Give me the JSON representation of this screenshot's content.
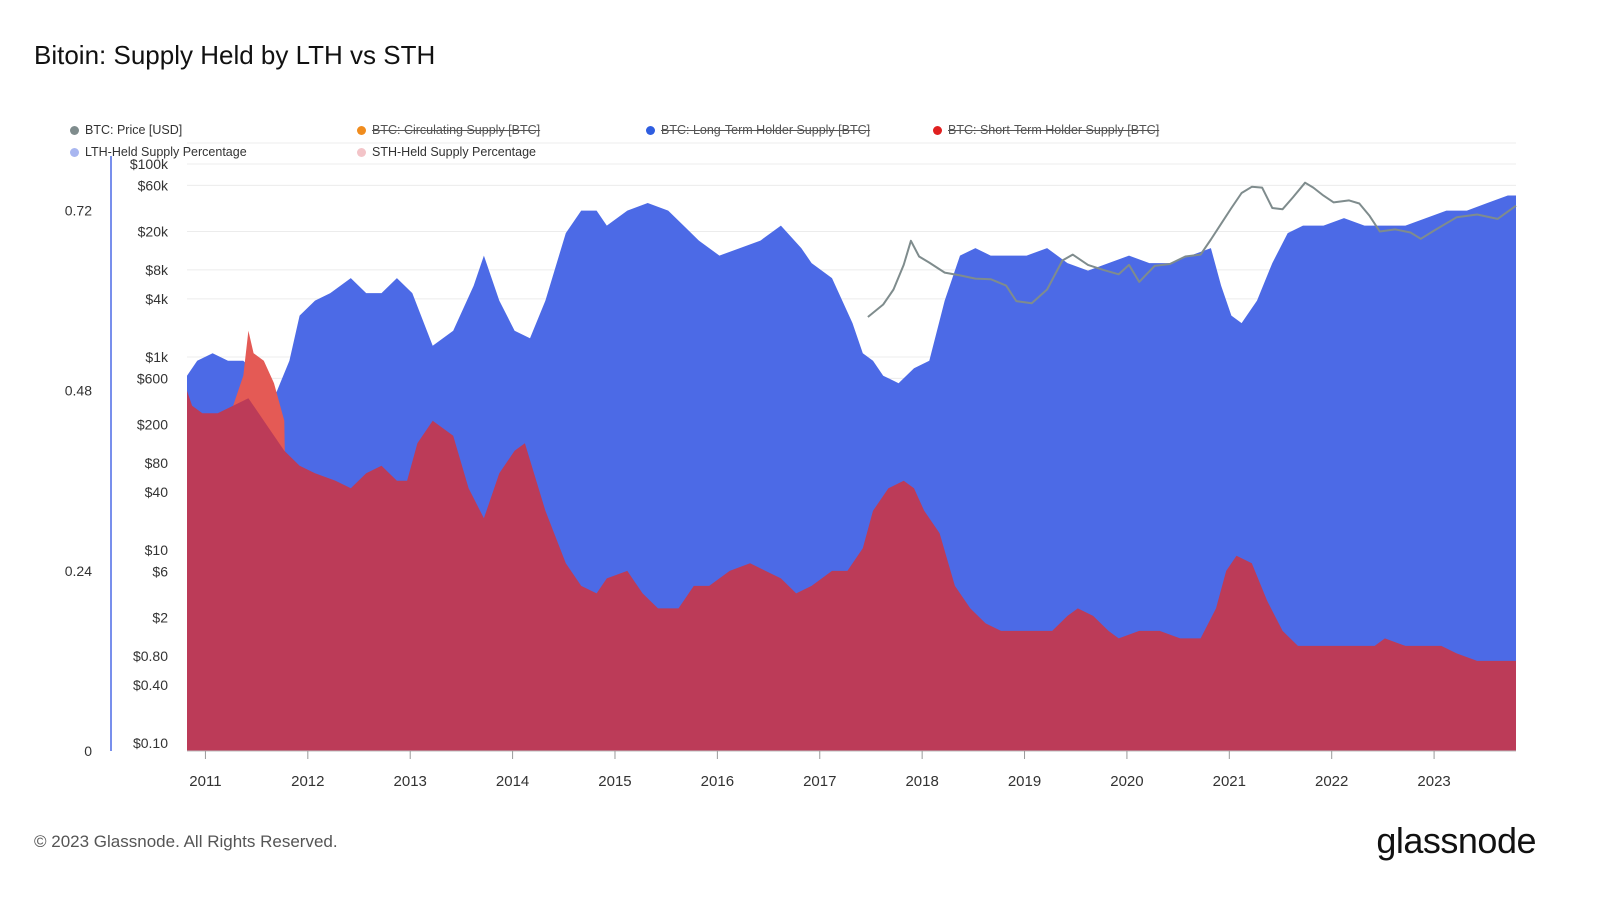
{
  "title": "Bitoin: Supply Held by LTH vs STH",
  "footer": "© 2023 Glassnode. All Rights Reserved.",
  "brand": "glassnode",
  "legend": [
    {
      "label": "BTC: Price [USD]",
      "color": "#7f8c8d",
      "active": true
    },
    {
      "label": "BTC: Circulating Supply [BTC]",
      "color": "#f08c1e",
      "active": false
    },
    {
      "label": "BTC: Long-Term Holder Supply [BTC]",
      "color": "#2f5ee0",
      "active": false
    },
    {
      "label": "BTC: Short-Term Holder Supply [BTC]",
      "color": "#e02020",
      "active": false
    },
    {
      "label": "LTH-Held Supply Percentage",
      "color": "#a8b6f0",
      "active": true
    },
    {
      "label": "STH-Held Supply Percentage",
      "color": "#f3c4c8",
      "active": true
    }
  ],
  "chart_data": {
    "type": "area",
    "title": "Bitoin: Supply Held by LTH vs STH",
    "x_ticks": [
      "2011",
      "2012",
      "2013",
      "2014",
      "2015",
      "2016",
      "2017",
      "2018",
      "2019",
      "2020",
      "2021",
      "2022",
      "2023"
    ],
    "xlim": [
      "2010-11-25",
      "2023-11-25"
    ],
    "left_axis": {
      "ticks": [
        "0",
        "0.24",
        "0.48",
        "0.72"
      ],
      "ylim": [
        0,
        0.81
      ]
    },
    "price_axis": {
      "scale": "log",
      "ticks": [
        "$0.10",
        "$0.40",
        "$0.80",
        "$2",
        "$6",
        "$10",
        "$40",
        "$80",
        "$200",
        "$600",
        "$1k",
        "$4k",
        "$8k",
        "$20k",
        "$60k",
        "$100k"
      ]
    },
    "colors": {
      "lth": "#4c6ae6",
      "sth": "#bc3b58",
      "sth_spike": "#e45a55",
      "price": "#7f8c8d"
    },
    "series": [
      {
        "name": "LTH-Held Supply Percentage",
        "x": [
          2010.9,
          2011.0,
          2011.15,
          2011.3,
          2011.45,
          2011.6,
          2011.75,
          2011.9,
          2012.0,
          2012.15,
          2012.3,
          2012.5,
          2012.65,
          2012.8,
          2012.95,
          2013.1,
          2013.3,
          2013.5,
          2013.7,
          2013.8,
          2013.95,
          2014.1,
          2014.25,
          2014.4,
          2014.6,
          2014.75,
          2014.9,
          2015.0,
          2015.2,
          2015.4,
          2015.6,
          2015.75,
          2015.9,
          2016.1,
          2016.3,
          2016.5,
          2016.7,
          2016.9,
          2017.0,
          2017.2,
          2017.4,
          2017.5,
          2017.6,
          2017.7,
          2017.85,
          2018.0,
          2018.15,
          2018.3,
          2018.45,
          2018.6,
          2018.75,
          2018.9,
          2019.1,
          2019.3,
          2019.5,
          2019.7,
          2019.9,
          2020.1,
          2020.3,
          2020.5,
          2020.7,
          2020.9,
          2021.0,
          2021.1,
          2021.2,
          2021.35,
          2021.5,
          2021.65,
          2021.8,
          2022.0,
          2022.2,
          2022.4,
          2022.6,
          2022.8,
          2023.0,
          2023.2,
          2023.4,
          2023.6,
          2023.8,
          2023.88
        ],
        "values": [
          0.5,
          0.52,
          0.53,
          0.52,
          0.52,
          0.5,
          0.47,
          0.52,
          0.58,
          0.6,
          0.61,
          0.63,
          0.61,
          0.61,
          0.63,
          0.61,
          0.54,
          0.56,
          0.62,
          0.66,
          0.6,
          0.56,
          0.55,
          0.6,
          0.69,
          0.72,
          0.72,
          0.7,
          0.72,
          0.73,
          0.72,
          0.7,
          0.68,
          0.66,
          0.67,
          0.68,
          0.7,
          0.67,
          0.65,
          0.63,
          0.57,
          0.53,
          0.52,
          0.5,
          0.49,
          0.51,
          0.52,
          0.6,
          0.66,
          0.67,
          0.66,
          0.66,
          0.66,
          0.67,
          0.65,
          0.64,
          0.65,
          0.66,
          0.65,
          0.65,
          0.66,
          0.67,
          0.62,
          0.58,
          0.57,
          0.6,
          0.65,
          0.69,
          0.7,
          0.7,
          0.71,
          0.7,
          0.7,
          0.7,
          0.71,
          0.72,
          0.72,
          0.73,
          0.74,
          0.74
        ]
      },
      {
        "name": "STH-Held Supply Percentage",
        "x": [
          2010.9,
          2010.95,
          2011.05,
          2011.2,
          2011.35,
          2011.5,
          2011.7,
          2011.85,
          2012.0,
          2012.15,
          2012.35,
          2012.5,
          2012.65,
          2012.8,
          2012.95,
          2013.05,
          2013.15,
          2013.3,
          2013.5,
          2013.65,
          2013.8,
          2013.95,
          2014.1,
          2014.2,
          2014.4,
          2014.6,
          2014.75,
          2014.9,
          2015.0,
          2015.2,
          2015.35,
          2015.5,
          2015.7,
          2015.85,
          2016.0,
          2016.2,
          2016.4,
          2016.55,
          2016.7,
          2016.85,
          2017.0,
          2017.2,
          2017.35,
          2017.5,
          2017.6,
          2017.75,
          2017.9,
          2018.0,
          2018.1,
          2018.25,
          2018.4,
          2018.55,
          2018.7,
          2018.85,
          2019.0,
          2019.2,
          2019.35,
          2019.5,
          2019.6,
          2019.75,
          2019.9,
          2020.0,
          2020.2,
          2020.4,
          2020.6,
          2020.8,
          2020.95,
          2021.05,
          2021.15,
          2021.3,
          2021.45,
          2021.6,
          2021.75,
          2021.9,
          2022.0,
          2022.2,
          2022.4,
          2022.5,
          2022.6,
          2022.8,
          2023.0,
          2023.15,
          2023.3,
          2023.5,
          2023.7,
          2023.88
        ],
        "values": [
          0.48,
          0.46,
          0.45,
          0.45,
          0.46,
          0.47,
          0.43,
          0.4,
          0.38,
          0.37,
          0.36,
          0.35,
          0.37,
          0.38,
          0.36,
          0.36,
          0.41,
          0.44,
          0.42,
          0.35,
          0.31,
          0.37,
          0.4,
          0.41,
          0.32,
          0.25,
          0.22,
          0.21,
          0.23,
          0.24,
          0.21,
          0.19,
          0.19,
          0.22,
          0.22,
          0.24,
          0.25,
          0.24,
          0.23,
          0.21,
          0.22,
          0.24,
          0.24,
          0.27,
          0.32,
          0.35,
          0.36,
          0.35,
          0.32,
          0.29,
          0.22,
          0.19,
          0.17,
          0.16,
          0.16,
          0.16,
          0.16,
          0.18,
          0.19,
          0.18,
          0.16,
          0.15,
          0.16,
          0.16,
          0.15,
          0.15,
          0.19,
          0.24,
          0.26,
          0.25,
          0.2,
          0.16,
          0.14,
          0.14,
          0.14,
          0.14,
          0.14,
          0.14,
          0.15,
          0.14,
          0.14,
          0.14,
          0.13,
          0.12,
          0.12,
          0.12
        ]
      },
      {
        "name": "BTC: Price [USD]",
        "x": [
          2017.55,
          2017.7,
          2017.8,
          2017.9,
          2017.97,
          2018.05,
          2018.15,
          2018.3,
          2018.45,
          2018.6,
          2018.75,
          2018.9,
          2019.0,
          2019.15,
          2019.3,
          2019.45,
          2019.55,
          2019.7,
          2019.85,
          2020.0,
          2020.1,
          2020.2,
          2020.35,
          2020.5,
          2020.65,
          2020.8,
          2020.9,
          2021.0,
          2021.1,
          2021.2,
          2021.3,
          2021.4,
          2021.5,
          2021.6,
          2021.7,
          2021.82,
          2021.9,
          2022.0,
          2022.1,
          2022.25,
          2022.35,
          2022.45,
          2022.55,
          2022.7,
          2022.85,
          2022.95,
          2023.1,
          2023.3,
          2023.5,
          2023.7,
          2023.88
        ],
        "values": [
          2600,
          3500,
          5000,
          9000,
          16000,
          11000,
          9500,
          7500,
          7000,
          6500,
          6400,
          5500,
          3800,
          3600,
          5000,
          10000,
          11500,
          9000,
          8000,
          7200,
          9000,
          6000,
          8800,
          9200,
          11000,
          11500,
          16500,
          24000,
          35000,
          50000,
          58000,
          57000,
          35000,
          34000,
          45000,
          64000,
          57000,
          47000,
          40000,
          42000,
          39000,
          29000,
          20000,
          21000,
          19500,
          16800,
          21000,
          28000,
          30000,
          27000,
          37000
        ]
      }
    ]
  }
}
